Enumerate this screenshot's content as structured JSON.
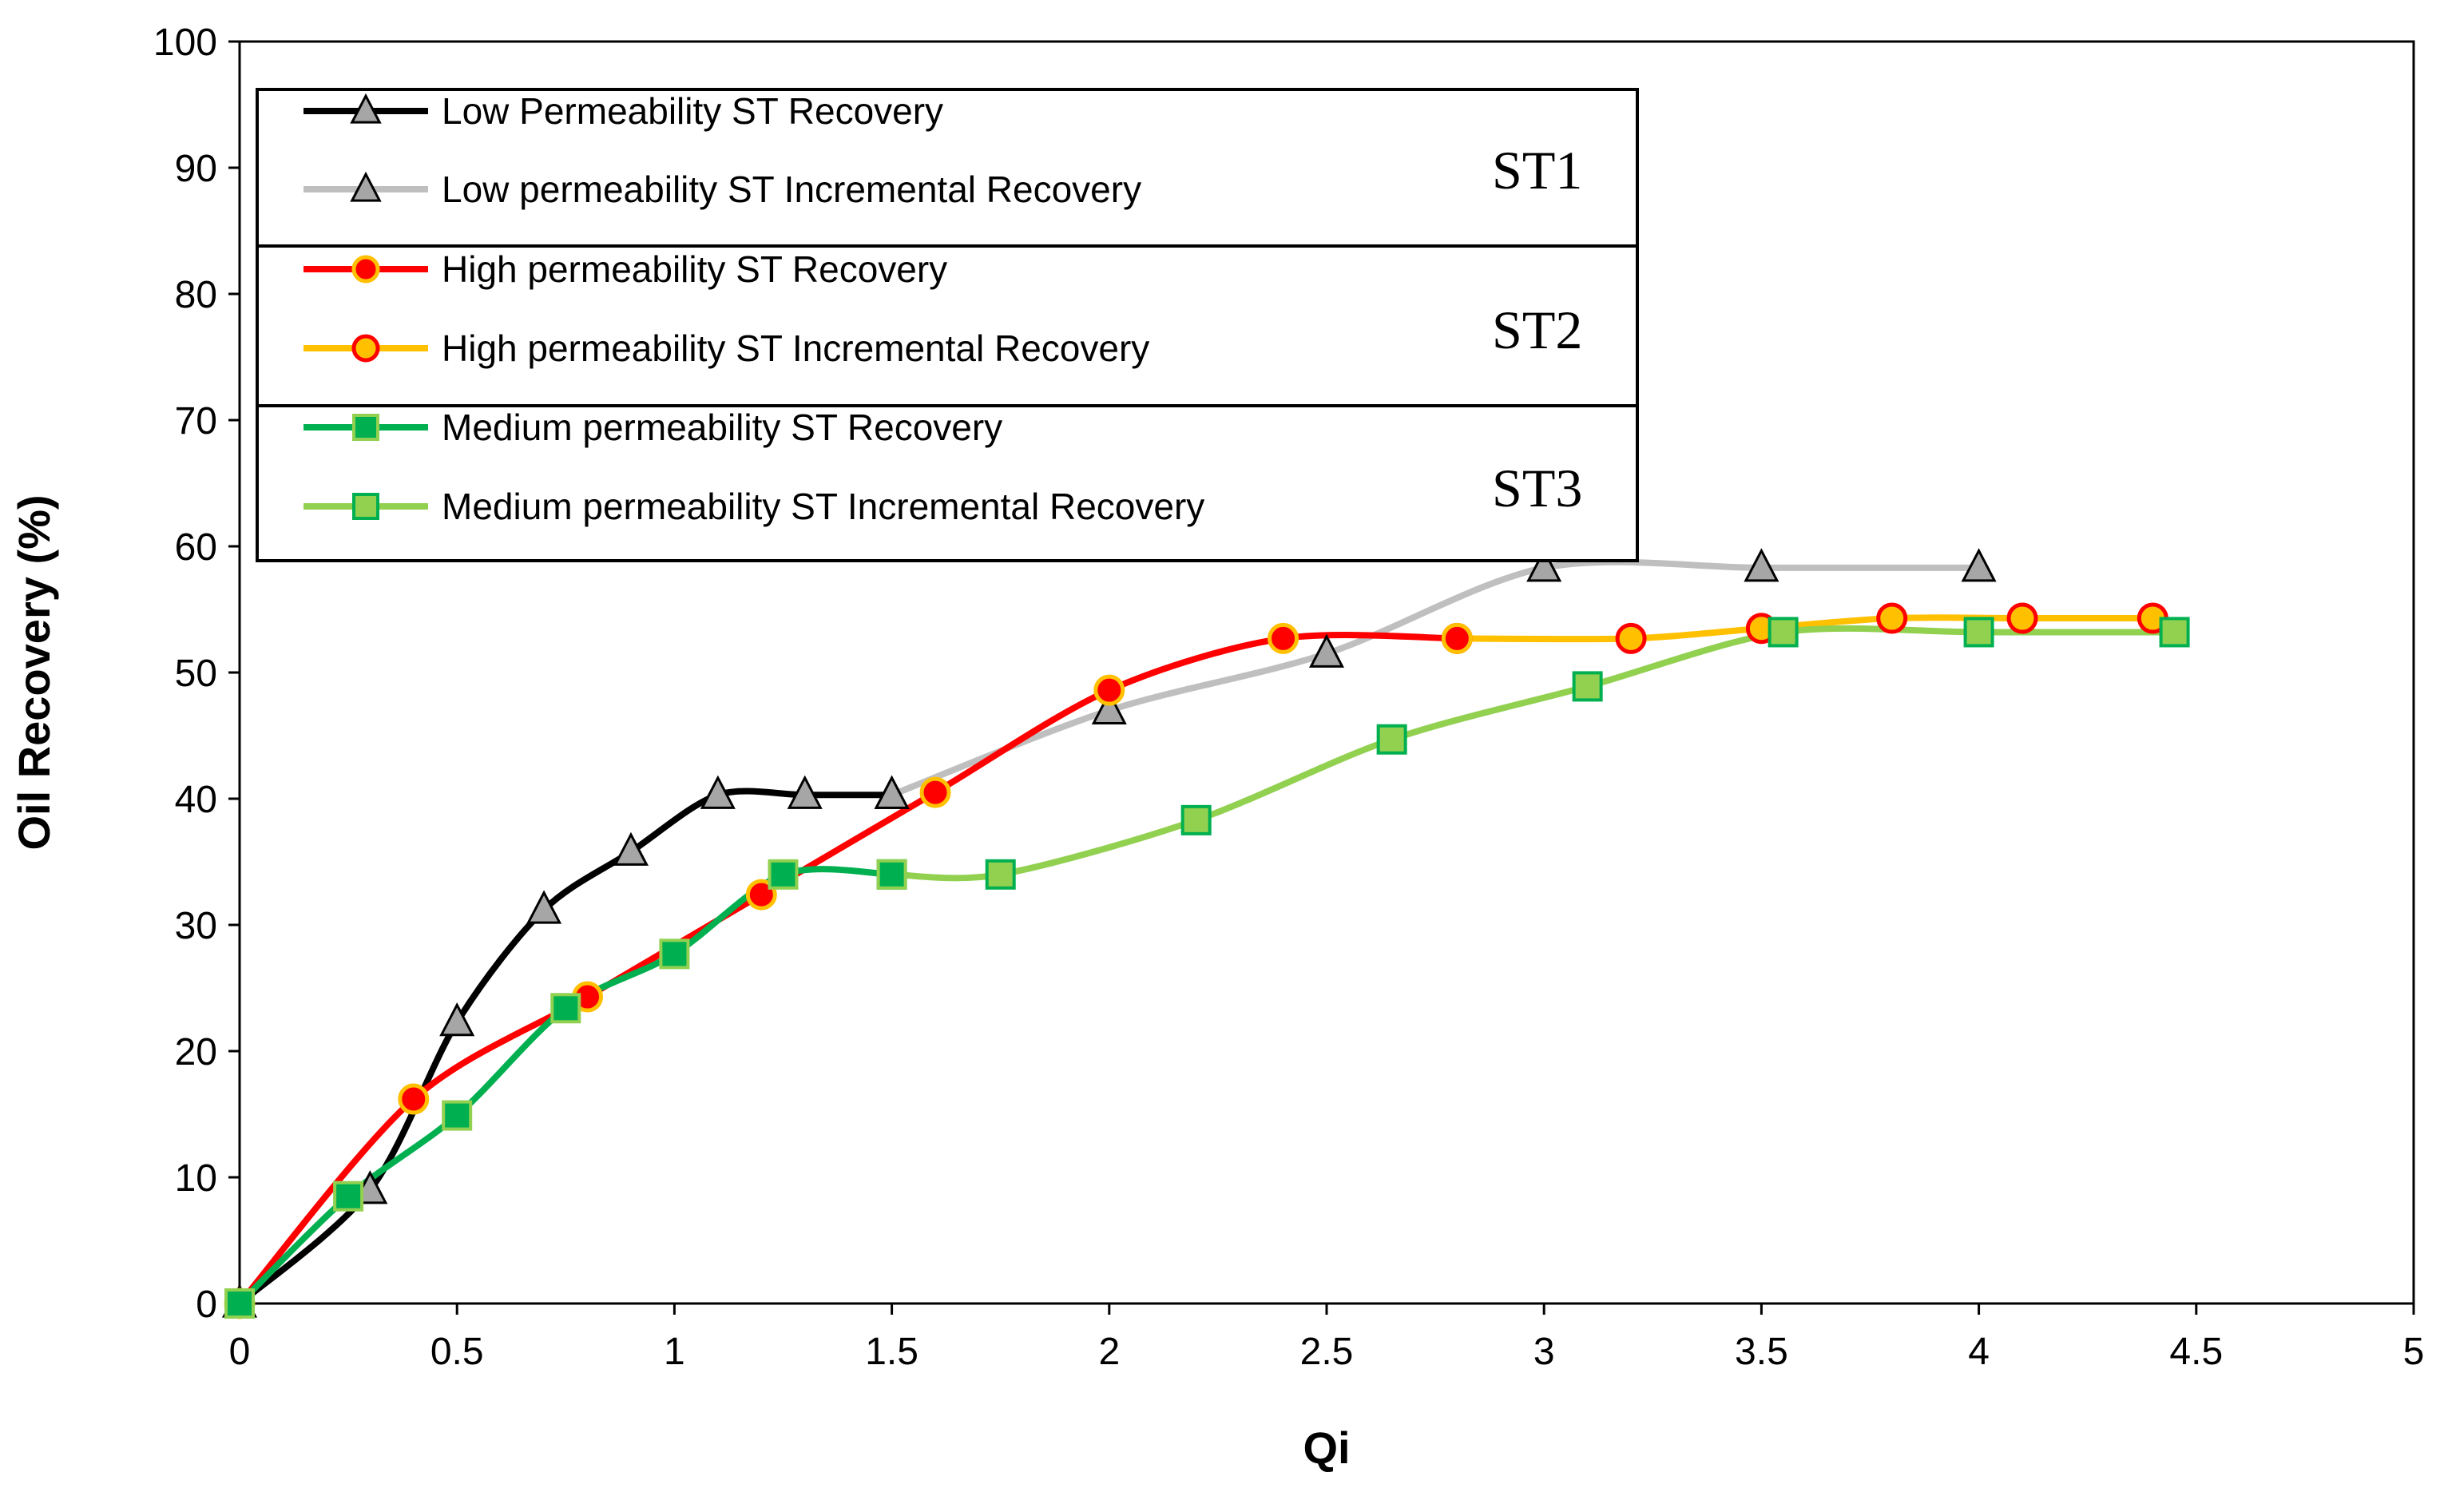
{
  "chart_data": {
    "type": "line",
    "title": "",
    "xlabel": "Qi",
    "ylabel": "Oil Recovery (%)",
    "xlim": [
      0,
      5
    ],
    "ylim": [
      0,
      100
    ],
    "x_ticks": [
      "0",
      "0.5",
      "1",
      "1.5",
      "2",
      "2.5",
      "3",
      "3.5",
      "4",
      "4.5",
      "5"
    ],
    "y_ticks": [
      "0",
      "10",
      "20",
      "30",
      "40",
      "50",
      "60",
      "70",
      "80",
      "90",
      "100"
    ],
    "legend_position": "top-left",
    "legend_groups": [
      "ST1",
      "ST2",
      "ST3"
    ],
    "series": [
      {
        "name": "Low Permeability ST Recovery",
        "group": "ST1",
        "line_color": "#000000",
        "marker": "triangle",
        "marker_fill": "#a6a6a6",
        "marker_stroke": "#000000",
        "points": [
          [
            0,
            0
          ],
          [
            0.3,
            9
          ],
          [
            0.5,
            22.3
          ],
          [
            0.7,
            31.2
          ],
          [
            0.9,
            35.8
          ],
          [
            1.1,
            40.3
          ],
          [
            1.3,
            40.3
          ],
          [
            1.5,
            40.3
          ]
        ]
      },
      {
        "name": "Low permeability ST Incremental Recovery",
        "group": "ST1",
        "line_color": "#bfbfbf",
        "marker": "triangle",
        "marker_fill": "#a6a6a6",
        "marker_stroke": "#000000",
        "points": [
          [
            1.5,
            40.3
          ],
          [
            2,
            47
          ],
          [
            2.5,
            51.5
          ],
          [
            3,
            58.3
          ],
          [
            3.5,
            58.3
          ],
          [
            4,
            58.3
          ]
        ]
      },
      {
        "name": "High permeability ST Recovery",
        "group": "ST2",
        "line_color": "#ff0000",
        "marker": "circle",
        "marker_fill": "#ff0000",
        "marker_stroke": "#ffc000",
        "points": [
          [
            0,
            0
          ],
          [
            0.4,
            16.2
          ],
          [
            0.8,
            24.3
          ],
          [
            1.2,
            32.4
          ],
          [
            1.6,
            40.5
          ],
          [
            2,
            48.6
          ],
          [
            2.4,
            52.7
          ],
          [
            2.8,
            52.7
          ]
        ]
      },
      {
        "name": "High permeability ST Incremental Recovery",
        "group": "ST2",
        "line_color": "#ffc000",
        "marker": "circle",
        "marker_fill": "#ffc000",
        "marker_stroke": "#ff0000",
        "points": [
          [
            2.8,
            52.7
          ],
          [
            3.2,
            52.7
          ],
          [
            3.5,
            53.5
          ],
          [
            3.8,
            54.3
          ],
          [
            4.1,
            54.3
          ],
          [
            4.4,
            54.3
          ]
        ]
      },
      {
        "name": "Medium permeability ST Recovery",
        "group": "ST3",
        "line_color": "#00b050",
        "marker": "square",
        "marker_fill": "#00b050",
        "marker_stroke": "#92d050",
        "points": [
          [
            0,
            0
          ],
          [
            0.25,
            8.5
          ],
          [
            0.5,
            14.9
          ],
          [
            0.75,
            23.4
          ],
          [
            1,
            27.7
          ],
          [
            1.25,
            34
          ],
          [
            1.5,
            34
          ]
        ]
      },
      {
        "name": "Medium permeability ST Incremental Recovery",
        "group": "ST3",
        "line_color": "#92d050",
        "marker": "square",
        "marker_fill": "#92d050",
        "marker_stroke": "#00b050",
        "points": [
          [
            1.5,
            34
          ],
          [
            1.75,
            34
          ],
          [
            2.2,
            38.3
          ],
          [
            2.65,
            44.7
          ],
          [
            3.1,
            48.9
          ],
          [
            3.55,
            53.2
          ],
          [
            4,
            53.2
          ],
          [
            4.45,
            53.2
          ]
        ]
      }
    ]
  }
}
